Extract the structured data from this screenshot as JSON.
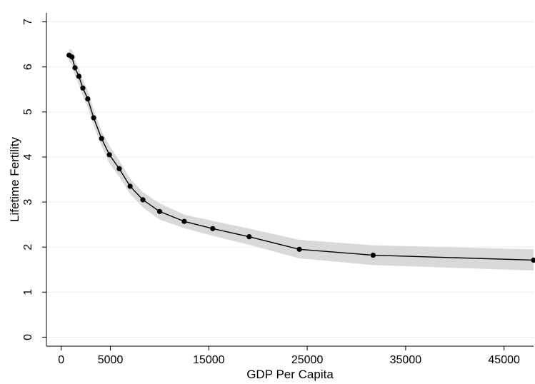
{
  "chart_data": {
    "type": "line",
    "title": "",
    "xlabel": "GDP Per Capita",
    "ylabel": "Lifetime Fertility",
    "xlim": [
      -1500,
      48000
    ],
    "ylim": [
      -0.2,
      7.2
    ],
    "x_ticks": [
      0,
      5000,
      15000,
      25000,
      35000,
      45000
    ],
    "y_ticks": [
      0,
      1,
      2,
      3,
      4,
      5,
      6,
      7
    ],
    "grid": "horizontal",
    "legend": "none",
    "colors": {
      "line": "#000000",
      "band": "#d9d9d9",
      "grid": "#e6eef2"
    },
    "series": [
      {
        "x": [
          800,
          1100,
          1400,
          1800,
          2200,
          2700,
          3300,
          4100,
          4900,
          5900,
          7000,
          8300,
          10000,
          12500,
          15400,
          19100,
          24200,
          31700,
          48000
        ],
        "y": [
          6.26,
          6.22,
          5.98,
          5.79,
          5.53,
          5.29,
          4.87,
          4.41,
          4.05,
          3.74,
          3.35,
          3.05,
          2.79,
          2.57,
          2.41,
          2.23,
          1.95,
          1.82,
          1.71
        ],
        "lower": [
          6.12,
          6.05,
          5.8,
          5.6,
          5.35,
          5.1,
          4.7,
          4.24,
          3.86,
          3.56,
          3.18,
          2.88,
          2.61,
          2.42,
          2.25,
          2.05,
          1.75,
          1.6,
          1.48
        ],
        "upper": [
          6.4,
          6.38,
          6.15,
          5.96,
          5.72,
          5.47,
          5.05,
          4.58,
          4.25,
          3.92,
          3.52,
          3.22,
          2.97,
          2.72,
          2.58,
          2.41,
          2.16,
          2.04,
          1.95
        ]
      }
    ]
  }
}
